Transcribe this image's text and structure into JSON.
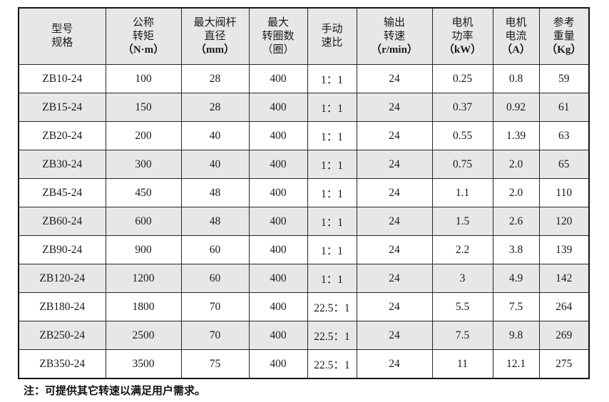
{
  "table": {
    "headers": [
      {
        "line1": "型号",
        "line2": "规格"
      },
      {
        "line1": "公称",
        "line2": "转矩",
        "unit": "（N·m）",
        "latin": true
      },
      {
        "line1": "最大阀杆",
        "line2": "直径",
        "unit": "（mm）",
        "latin": true
      },
      {
        "line1": "最大",
        "line2": "转圈数",
        "unit": "（圈）",
        "latin": false
      },
      {
        "line1": "手动",
        "line2": "速比"
      },
      {
        "line1": "输出",
        "line2": "转速",
        "unit": "（r/min）",
        "latin": true
      },
      {
        "line1": "电机",
        "line2": "功率",
        "unit": "（kW）",
        "latin": true
      },
      {
        "line1": "电机",
        "line2": "电流",
        "unit": "（A）",
        "latin": true
      },
      {
        "line1": "参考",
        "line2": "重量",
        "unit": "（Kg）",
        "latin": true
      }
    ],
    "rows": [
      [
        "ZB10-24",
        "100",
        "28",
        "400",
        "1：1",
        "24",
        "0.25",
        "0.8",
        "59"
      ],
      [
        "ZB15-24",
        "150",
        "28",
        "400",
        "1：1",
        "24",
        "0.37",
        "0.92",
        "61"
      ],
      [
        "ZB20-24",
        "200",
        "40",
        "400",
        "1：1",
        "24",
        "0.55",
        "1.39",
        "63"
      ],
      [
        "ZB30-24",
        "300",
        "40",
        "400",
        "1：1",
        "24",
        "0.75",
        "2.0",
        "65"
      ],
      [
        "ZB45-24",
        "450",
        "48",
        "400",
        "1：1",
        "24",
        "1.1",
        "2.0",
        "110"
      ],
      [
        "ZB60-24",
        "600",
        "48",
        "400",
        "1：1",
        "24",
        "1.5",
        "2.6",
        "120"
      ],
      [
        "ZB90-24",
        "900",
        "60",
        "400",
        "1：1",
        "24",
        "2.2",
        "3.8",
        "139"
      ],
      [
        "ZB120-24",
        "1200",
        "60",
        "400",
        "1：1",
        "24",
        "3",
        "4.9",
        "142"
      ],
      [
        "ZB180-24",
        "1800",
        "70",
        "400",
        "22.5：1",
        "24",
        "5.5",
        "7.5",
        "264"
      ],
      [
        "ZB250-24",
        "2500",
        "70",
        "400",
        "22.5：1",
        "24",
        "7.5",
        "9.8",
        "269"
      ],
      [
        "ZB350-24",
        "3500",
        "75",
        "400",
        "22.5：1",
        "24",
        "11",
        "12.1",
        "275"
      ]
    ],
    "shaded_row_color": "#e7e7e7",
    "border_color": "#141414"
  },
  "note": {
    "text": "注：可提供其它转速以满足用户需求。"
  }
}
